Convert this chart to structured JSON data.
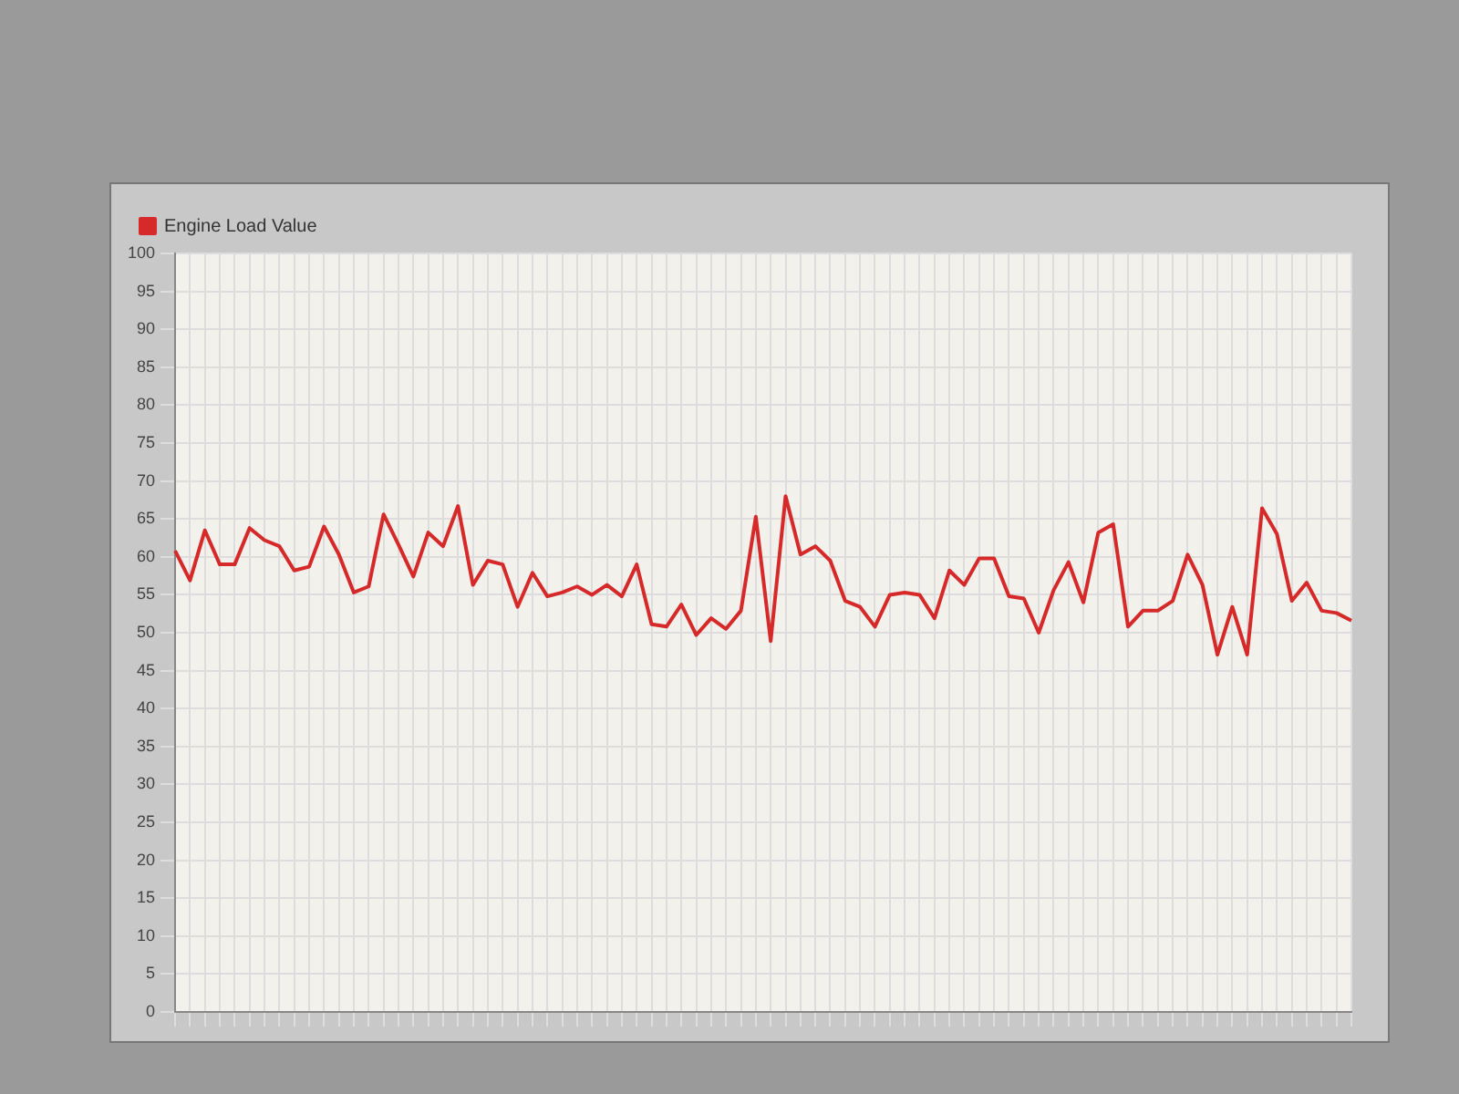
{
  "chart_data": {
    "type": "line",
    "categories": [
      null,
      null,
      null,
      null,
      null,
      null,
      null,
      null,
      null,
      null,
      null,
      null,
      null,
      null,
      null,
      null,
      null,
      null,
      null,
      null,
      null,
      null,
      null,
      null,
      null,
      null,
      null,
      null,
      null,
      null,
      null,
      null,
      null,
      null,
      null,
      null,
      null,
      null,
      null,
      null,
      null,
      null,
      null,
      null,
      null,
      null,
      null,
      null,
      null,
      null,
      null,
      null,
      null,
      null,
      null,
      null,
      null,
      null,
      null,
      null,
      null,
      null,
      null,
      null,
      null,
      null,
      null,
      null,
      null,
      null,
      null,
      null,
      null,
      null,
      null,
      null,
      null,
      null,
      null,
      null
    ],
    "series": [
      {
        "name": "Engine Load Value",
        "color": "#d62a2a",
        "values": [
          60.8,
          56.9,
          63.5,
          59.0,
          59.0,
          63.8,
          62.2,
          61.4,
          58.2,
          58.7,
          64.0,
          60.3,
          55.3,
          56.1,
          65.6,
          61.6,
          57.4,
          63.2,
          61.4,
          66.7,
          56.3,
          59.5,
          59.0,
          53.4,
          57.9,
          54.8,
          55.3,
          56.1,
          55.0,
          56.3,
          54.8,
          59.0,
          51.1,
          50.8,
          53.7,
          49.7,
          51.9,
          50.5,
          52.9,
          65.3,
          48.9,
          68.0,
          60.3,
          61.4,
          59.5,
          54.2,
          53.4,
          50.8,
          55.0,
          55.3,
          55.0,
          51.9,
          58.2,
          56.3,
          59.8,
          59.8,
          54.8,
          54.5,
          50.0,
          55.6,
          59.3,
          54.0,
          63.2,
          64.3,
          50.8,
          52.9,
          52.9,
          54.2,
          60.3,
          56.3,
          47.1,
          53.4,
          47.1,
          66.4,
          63.0,
          54.2,
          56.6,
          52.9,
          52.6,
          51.6
        ]
      }
    ],
    "ylim": [
      0,
      100
    ],
    "yticks": [
      0,
      5,
      10,
      15,
      20,
      25,
      30,
      35,
      40,
      45,
      50,
      55,
      60,
      65,
      70,
      75,
      80,
      85,
      90,
      95,
      100
    ],
    "grid": true,
    "legend": "top left",
    "marker": "none",
    "line_style": "solid",
    "tick_labels": "y"
  }
}
